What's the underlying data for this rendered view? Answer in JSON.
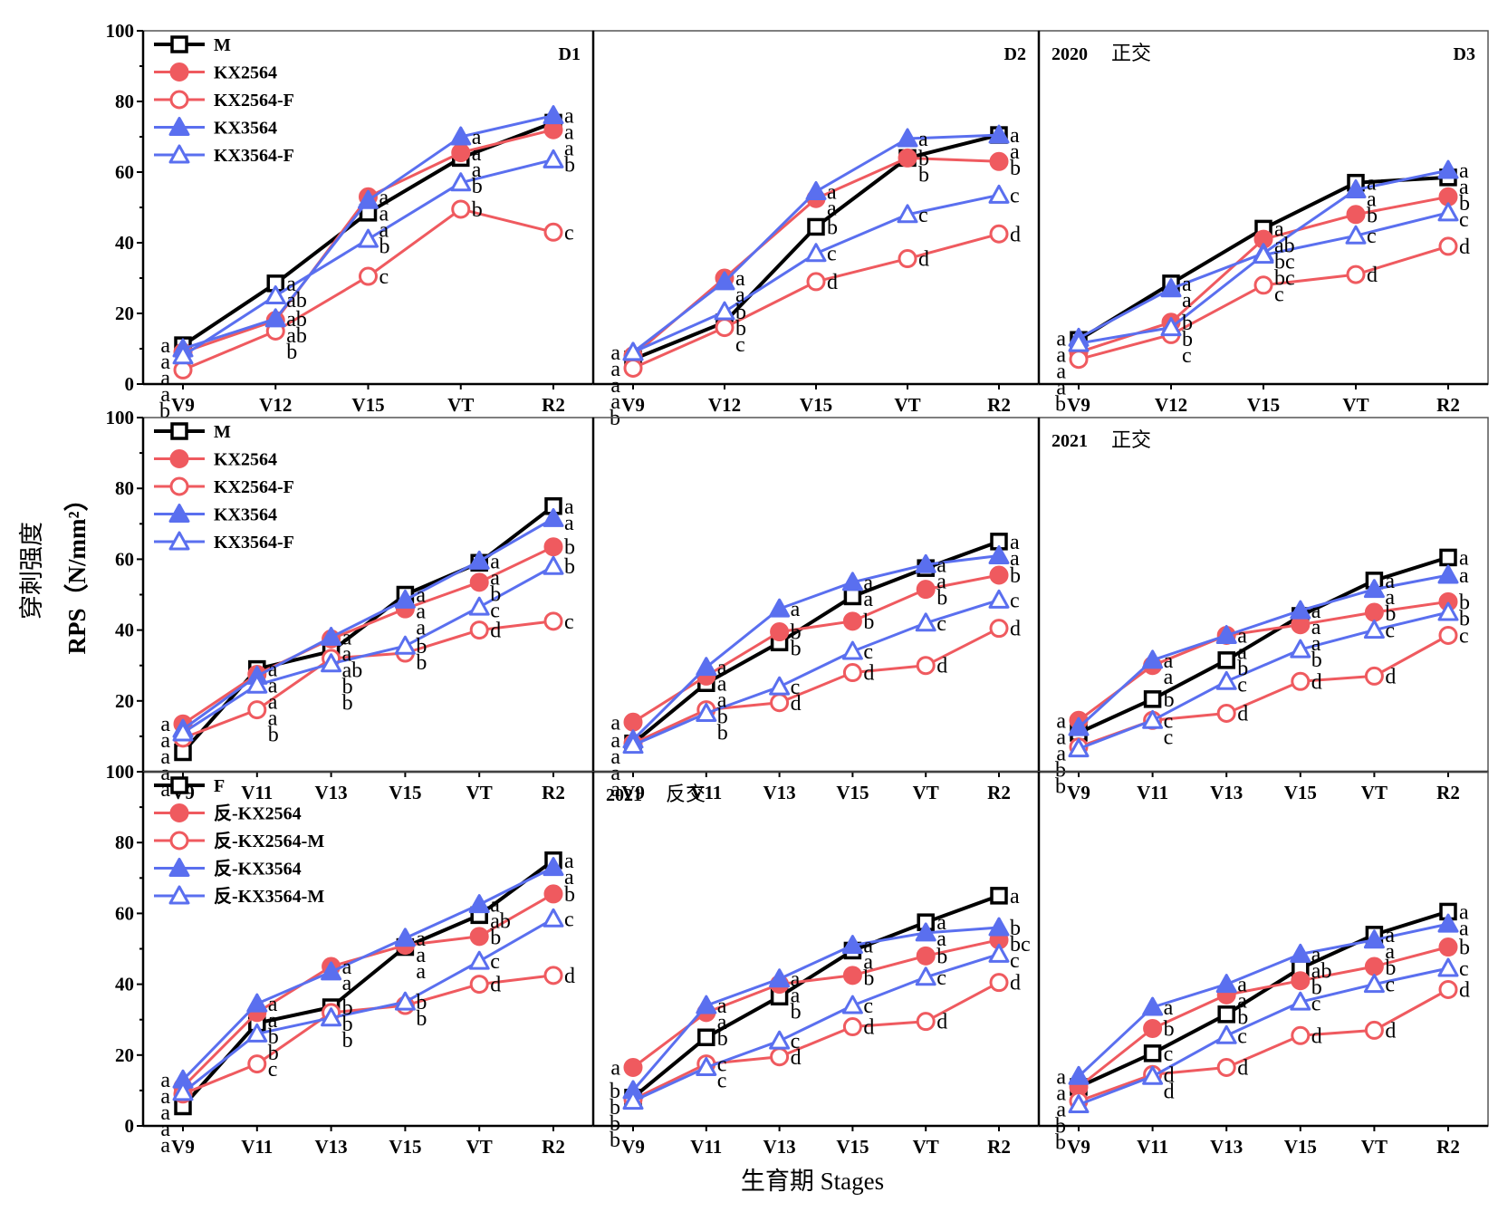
{
  "figure": {
    "y_title_cn": "穿刺强度",
    "y_title_en": "RPS（N/mm²）",
    "x_title": "生育期 Stages"
  },
  "colors": {
    "black": "#000000",
    "red": "#ef5a5f",
    "blue": "#5a6fef"
  },
  "chart_data": [
    {
      "type": "line",
      "row": 0,
      "col": 0,
      "corner_labels": [
        "D1"
      ],
      "categories": [
        "V9",
        "V12",
        "V15",
        "VT",
        "R2"
      ],
      "ylim": [
        0,
        100
      ],
      "yticks": [
        0,
        20,
        40,
        60,
        80,
        100
      ],
      "legend": [
        "M",
        "KX2564",
        "KX2564-F",
        "KX3564",
        "KX3564-F"
      ],
      "series": [
        {
          "name": "M",
          "style": "M",
          "values": [
            11,
            28.5,
            48.5,
            64,
            74
          ],
          "sig": [
            "a",
            "a",
            "a",
            "a",
            "a"
          ]
        },
        {
          "name": "KX2564",
          "style": "KX2564",
          "values": [
            9,
            18,
            53,
            65.5,
            72
          ],
          "sig": [
            "a",
            "ab",
            "a",
            "a",
            "a"
          ]
        },
        {
          "name": "KX2564-F",
          "style": "KX2564-F",
          "values": [
            4,
            15,
            30.5,
            49.5,
            43
          ],
          "sig": [
            "b",
            "b",
            "c",
            "b",
            "c"
          ]
        },
        {
          "name": "KX3564",
          "style": "KX3564",
          "values": [
            10,
            18.5,
            52,
            70,
            76
          ],
          "sig": [
            "a",
            "ab",
            "a",
            "a",
            "a"
          ]
        },
        {
          "name": "KX3564-F",
          "style": "KX3564-F",
          "values": [
            8,
            25,
            41,
            57,
            63.5
          ],
          "sig": [
            "a",
            "ab",
            "b",
            "b",
            "b"
          ]
        }
      ]
    },
    {
      "type": "line",
      "row": 0,
      "col": 1,
      "corner_labels": [
        "D2"
      ],
      "categories": [
        "V9",
        "V12",
        "V15",
        "VT",
        "R2"
      ],
      "ylim": [
        0,
        100
      ],
      "yticks": [],
      "series": [
        {
          "style": "M",
          "values": [
            7,
            17.5,
            44.5,
            64,
            70.5
          ],
          "sig": [
            "a",
            "b",
            "b",
            "b",
            "a"
          ]
        },
        {
          "style": "KX2564",
          "values": [
            8,
            30,
            52.5,
            64,
            63
          ],
          "sig": [
            "a",
            "a",
            "a",
            "b",
            "b"
          ]
        },
        {
          "style": "KX2564-F",
          "values": [
            4.5,
            16,
            29,
            35.5,
            42.5
          ],
          "sig": [
            "b",
            "c",
            "d",
            "d",
            "d"
          ]
        },
        {
          "style": "KX3564",
          "values": [
            9,
            29,
            54.5,
            69.5,
            70.5
          ],
          "sig": [
            "a",
            "a",
            "a",
            "a",
            "a"
          ]
        },
        {
          "style": "KX3564-F",
          "values": [
            9,
            20.5,
            37,
            48,
            53.5
          ],
          "sig": [
            "a",
            "b",
            "c",
            "c",
            "c"
          ]
        }
      ]
    },
    {
      "type": "line",
      "row": 0,
      "col": 2,
      "corner_labels": [
        "2020",
        "正交",
        "D3"
      ],
      "categories": [
        "V9",
        "V12",
        "V15",
        "VT",
        "R2"
      ],
      "ylim": [
        0,
        100
      ],
      "yticks": [],
      "series": [
        {
          "style": "M",
          "values": [
            12.5,
            28.5,
            44,
            57,
            58.5
          ],
          "sig": [
            "a",
            "a",
            "a",
            "a",
            "a"
          ]
        },
        {
          "style": "KX2564",
          "values": [
            9,
            17.5,
            41,
            48,
            53
          ],
          "sig": [
            "a",
            "b",
            "ab",
            "b",
            "b"
          ]
        },
        {
          "style": "KX2564-F",
          "values": [
            7,
            14,
            28,
            31,
            39
          ],
          "sig": [
            "b",
            "c",
            "c",
            "d",
            "d"
          ]
        },
        {
          "style": "KX3564",
          "values": [
            13,
            27,
            37,
            55,
            60.5
          ],
          "sig": [
            "a",
            "a",
            "bc",
            "a",
            "a"
          ]
        },
        {
          "style": "KX3564-F",
          "values": [
            11.5,
            16,
            36.5,
            42,
            48.5
          ],
          "sig": [
            "a",
            "b",
            "bc",
            "c",
            "c"
          ]
        }
      ]
    },
    {
      "type": "line",
      "row": 1,
      "col": 0,
      "corner_labels": [],
      "categories": [
        "V9",
        "V11",
        "V13",
        "V15",
        "VT",
        "R2"
      ],
      "ylim": [
        0,
        100
      ],
      "yticks": [
        20,
        40,
        60,
        80,
        100
      ],
      "legend": [
        "M",
        "KX2564",
        "KX2564-F",
        "KX3564",
        "KX3564-F"
      ],
      "series": [
        {
          "name": "M",
          "style": "M",
          "values": [
            5.5,
            29,
            34,
            50,
            59,
            75
          ],
          "sig": [
            "a",
            "a",
            "ab",
            "a",
            "a",
            "a"
          ]
        },
        {
          "name": "KX2564",
          "style": "KX2564",
          "values": [
            13.5,
            27.5,
            37.5,
            46,
            53.5,
            63.5
          ],
          "sig": [
            "a",
            "a",
            "a",
            "a",
            "b",
            "b"
          ]
        },
        {
          "name": "KX2564-F",
          "style": "KX2564-F",
          "values": [
            9.5,
            17.5,
            32,
            33.5,
            40,
            42.5
          ],
          "sig": [
            "a",
            "b",
            "b",
            "b",
            "d",
            "c"
          ]
        },
        {
          "name": "KX3564",
          "style": "KX3564",
          "values": [
            12,
            27,
            38,
            48.5,
            59.5,
            71.5
          ],
          "sig": [
            "a",
            "a",
            "a",
            "a",
            "a",
            "a"
          ]
        },
        {
          "name": "KX3564-F",
          "style": "KX3564-F",
          "values": [
            11,
            24.5,
            30.5,
            35.5,
            46.5,
            58
          ],
          "sig": [
            "a",
            "a",
            "b",
            "b",
            "c",
            "b"
          ]
        }
      ]
    },
    {
      "type": "line",
      "row": 1,
      "col": 1,
      "corner_labels": [],
      "categories": [
        "V9",
        "V11",
        "V13",
        "V15",
        "VT",
        "R2"
      ],
      "ylim": [
        0,
        100
      ],
      "yticks": [],
      "series": [
        {
          "style": "M",
          "values": [
            8,
            25,
            36.5,
            49.5,
            57.5,
            65
          ],
          "sig": [
            "a",
            "a",
            "b",
            "a",
            "a",
            "a"
          ]
        },
        {
          "style": "KX2564",
          "values": [
            14,
            27,
            39.5,
            42.5,
            51.5,
            55.5
          ],
          "sig": [
            "a",
            "a",
            "b",
            "b",
            "b",
            "b"
          ]
        },
        {
          "style": "KX2564-F",
          "values": [
            8,
            17.5,
            19.5,
            28,
            30,
            40.5
          ],
          "sig": [
            "a",
            "b",
            "d",
            "d",
            "d",
            "d"
          ]
        },
        {
          "style": "KX3564",
          "values": [
            9,
            29.5,
            46,
            53.5,
            58.5,
            61
          ],
          "sig": [
            "a",
            "a",
            "a",
            "a",
            "a",
            "a"
          ]
        },
        {
          "style": "KX3564-F",
          "values": [
            7.5,
            16.5,
            24,
            34,
            42,
            48.5
          ],
          "sig": [
            "a",
            "b",
            "c",
            "c",
            "c",
            "c"
          ]
        }
      ]
    },
    {
      "type": "line",
      "row": 1,
      "col": 2,
      "corner_labels": [
        "2021",
        "正交"
      ],
      "categories": [
        "V9",
        "V11",
        "V13",
        "V15",
        "VT",
        "R2"
      ],
      "ylim": [
        0,
        100
      ],
      "yticks": [],
      "series": [
        {
          "style": "M",
          "values": [
            11,
            20.5,
            31.5,
            44,
            54,
            60.5
          ],
          "sig": [
            "a",
            "b",
            "b",
            "a",
            "a",
            "a"
          ]
        },
        {
          "style": "KX2564",
          "values": [
            14.5,
            30,
            38.5,
            41.5,
            45,
            48
          ],
          "sig": [
            "a",
            "a",
            "a",
            "a",
            "b",
            "b"
          ]
        },
        {
          "style": "KX2564-F",
          "values": [
            7,
            14.5,
            16.5,
            25.5,
            27,
            38.5
          ],
          "sig": [
            "b",
            "c",
            "d",
            "d",
            "d",
            "c"
          ]
        },
        {
          "style": "KX3564",
          "values": [
            12.5,
            31.5,
            38.5,
            45.5,
            51.5,
            55.5
          ],
          "sig": [
            "a",
            "a",
            "a",
            "a",
            "a",
            "a"
          ]
        },
        {
          "style": "KX3564-F",
          "values": [
            6.5,
            14.5,
            25.5,
            34.5,
            40,
            45
          ],
          "sig": [
            "b",
            "c",
            "c",
            "b",
            "c",
            "b"
          ]
        }
      ]
    },
    {
      "type": "line",
      "row": 2,
      "col": 0,
      "corner_labels": [],
      "categories": [
        "V9",
        "V11",
        "V13",
        "V15",
        "VT",
        "R2"
      ],
      "ylim": [
        0,
        100
      ],
      "yticks": [
        0,
        20,
        40,
        60,
        80,
        100
      ],
      "legend": [
        "F",
        "反-KX2564",
        "反-KX2564-M",
        "反-KX3564",
        "反-KX3564-M"
      ],
      "series": [
        {
          "name": "F",
          "style": "M",
          "values": [
            5.5,
            29,
            33.5,
            50.5,
            59.5,
            75
          ],
          "sig": [
            "a",
            "b",
            "b",
            "a",
            "ab",
            "a"
          ]
        },
        {
          "name": "反-KX2564",
          "style": "KX2564",
          "values": [
            11,
            32,
            45,
            51,
            53.5,
            65.5
          ],
          "sig": [
            "a",
            "a",
            "a",
            "a",
            "b",
            "b"
          ]
        },
        {
          "name": "反-KX2564-M",
          "style": "KX2564-F",
          "values": [
            9,
            17.5,
            32,
            34,
            40,
            42.5
          ],
          "sig": [
            "a",
            "c",
            "b",
            "b",
            "d",
            "d"
          ]
        },
        {
          "name": "反-KX3564",
          "style": "KX3564",
          "values": [
            13,
            34.5,
            43.5,
            53,
            62.5,
            73
          ],
          "sig": [
            "a",
            "a",
            "a",
            "a",
            "a",
            "a"
          ]
        },
        {
          "name": "反-KX3564-M",
          "style": "KX3564-F",
          "values": [
            9.5,
            26,
            30.5,
            35,
            46.5,
            58.5
          ],
          "sig": [
            "a",
            "b",
            "b",
            "b",
            "c",
            "c"
          ]
        }
      ]
    },
    {
      "type": "line",
      "row": 2,
      "col": 1,
      "corner_labels": [
        "2021",
        "反交"
      ],
      "categories": [
        "V9",
        "V11",
        "V13",
        "V15",
        "VT",
        "R2"
      ],
      "ylim": [
        0,
        100
      ],
      "yticks": [],
      "series": [
        {
          "style": "M",
          "values": [
            8,
            25,
            36.5,
            49.5,
            57.5,
            65
          ],
          "sig": [
            "b",
            "b",
            "b",
            "a",
            "a",
            "a"
          ]
        },
        {
          "style": "KX2564",
          "values": [
            16.5,
            32,
            40,
            42.5,
            48,
            52.5
          ],
          "sig": [
            "a",
            "a",
            "a",
            "b",
            "b",
            "bc"
          ]
        },
        {
          "style": "KX2564-F",
          "values": [
            7.5,
            17.5,
            19.5,
            28,
            29.5,
            40.5
          ],
          "sig": [
            "b",
            "c",
            "d",
            "d",
            "d",
            "d"
          ]
        },
        {
          "style": "KX3564",
          "values": [
            10,
            34,
            41.5,
            51,
            54.5,
            56
          ],
          "sig": [
            "b",
            "a",
            "a",
            "a",
            "a",
            "b"
          ]
        },
        {
          "style": "KX3564-F",
          "values": [
            7,
            16.5,
            24,
            34,
            42,
            48.5
          ],
          "sig": [
            "b",
            "c",
            "c",
            "c",
            "c",
            "c"
          ]
        }
      ]
    },
    {
      "type": "line",
      "row": 2,
      "col": 2,
      "corner_labels": [],
      "categories": [
        "V9",
        "V11",
        "V13",
        "V15",
        "VT",
        "R2"
      ],
      "ylim": [
        0,
        100
      ],
      "yticks": [],
      "series": [
        {
          "style": "M",
          "values": [
            11,
            20.5,
            31.5,
            44.5,
            54,
            60.5
          ],
          "sig": [
            "a",
            "c",
            "b",
            "ab",
            "a",
            "a"
          ]
        },
        {
          "style": "KX2564",
          "values": [
            11,
            27.5,
            37,
            41,
            45,
            50.5
          ],
          "sig": [
            "a",
            "b",
            "a",
            "b",
            "b",
            "b"
          ]
        },
        {
          "style": "KX2564-F",
          "values": [
            7,
            14.5,
            16.5,
            25.5,
            27,
            38.5
          ],
          "sig": [
            "b",
            "d",
            "d",
            "d",
            "d",
            "d"
          ]
        },
        {
          "style": "KX3564",
          "values": [
            14,
            33.5,
            40,
            48.5,
            52.5,
            57
          ],
          "sig": [
            "a",
            "a",
            "a",
            "a",
            "a",
            "a"
          ]
        },
        {
          "style": "KX3564-F",
          "values": [
            6,
            14,
            25.5,
            35,
            40,
            44.5
          ],
          "sig": [
            "b",
            "d",
            "c",
            "c",
            "c",
            "c"
          ]
        }
      ]
    }
  ]
}
